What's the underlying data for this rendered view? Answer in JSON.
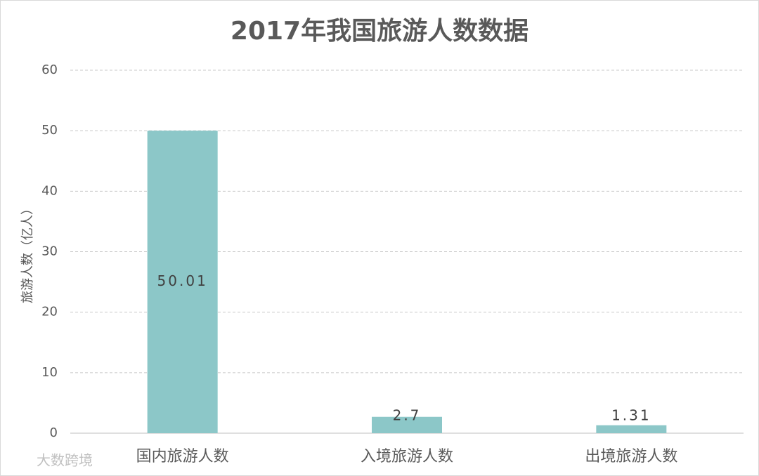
{
  "chart_data": {
    "type": "bar",
    "title": "2017年我国旅游人数数据",
    "y_label": "旅游人数（亿人）",
    "categories": [
      "国内旅游人数",
      "入境旅游人数",
      "出境旅游人数"
    ],
    "values": [
      50.01,
      2.7,
      1.31
    ],
    "color": "#8cc7c8",
    "ylim": [
      0,
      60
    ],
    "yticks": [
      0,
      10,
      20,
      30,
      40,
      50,
      60
    ],
    "grid": true
  },
  "watermark": "大数跨境"
}
